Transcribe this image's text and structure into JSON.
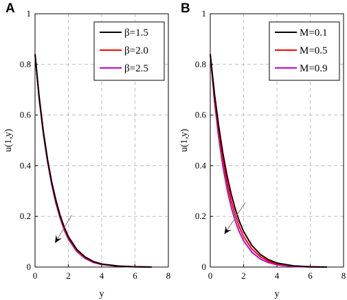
{
  "chart_data": [
    {
      "panel_label": "A",
      "type": "line",
      "xlabel": "y",
      "ylabel": "u(1,y)",
      "xlim": [
        0,
        8
      ],
      "ylim": [
        0,
        1
      ],
      "xticks": [
        "0",
        "2",
        "4",
        "6",
        "8"
      ],
      "yticks": [
        "0",
        "0.2",
        "0.4",
        "0.6",
        "0.8",
        "1"
      ],
      "grid": true,
      "legend_position": "top-right",
      "x": [
        0,
        0.25,
        0.5,
        0.75,
        1,
        1.25,
        1.5,
        1.75,
        2,
        2.5,
        3,
        3.5,
        4,
        5,
        6,
        7
      ],
      "series": [
        {
          "name": "β=1.5",
          "color": "#000000",
          "values": [
            0.84,
            0.67,
            0.535,
            0.425,
            0.335,
            0.265,
            0.205,
            0.158,
            0.12,
            0.07,
            0.04,
            0.022,
            0.012,
            0.004,
            0.001,
            0.0
          ]
        },
        {
          "name": "β=2.0",
          "color": "#ff0000",
          "values": [
            0.84,
            0.665,
            0.53,
            0.42,
            0.33,
            0.258,
            0.2,
            0.152,
            0.115,
            0.066,
            0.037,
            0.02,
            0.011,
            0.003,
            0.001,
            0.0
          ]
        },
        {
          "name": "β=2.5",
          "color": "#cc00cc",
          "values": [
            0.84,
            0.66,
            0.525,
            0.415,
            0.325,
            0.252,
            0.194,
            0.147,
            0.11,
            0.062,
            0.034,
            0.018,
            0.01,
            0.003,
            0.001,
            0.0
          ]
        }
      ],
      "annotation": {
        "type": "arrow",
        "from": [
          2.2,
          0.205
        ],
        "to": [
          1.2,
          0.095
        ]
      }
    },
    {
      "panel_label": "B",
      "type": "line",
      "xlabel": "y",
      "ylabel": "u(1,y)",
      "xlim": [
        0,
        8
      ],
      "ylim": [
        0,
        1
      ],
      "xticks": [
        "0",
        "2",
        "4",
        "6",
        "8"
      ],
      "yticks": [
        "0",
        "0.2",
        "0.4",
        "0.6",
        "0.8",
        "1"
      ],
      "grid": true,
      "legend_position": "top-right",
      "x": [
        0,
        0.25,
        0.5,
        0.75,
        1,
        1.25,
        1.5,
        1.75,
        2,
        2.5,
        3,
        3.5,
        4,
        5,
        6,
        7
      ],
      "series": [
        {
          "name": "M=0.1",
          "color": "#000000",
          "values": [
            0.84,
            0.685,
            0.56,
            0.452,
            0.362,
            0.29,
            0.229,
            0.18,
            0.14,
            0.085,
            0.05,
            0.029,
            0.016,
            0.005,
            0.001,
            0.0
          ]
        },
        {
          "name": "M=0.5",
          "color": "#ff0000",
          "values": [
            0.84,
            0.67,
            0.535,
            0.425,
            0.335,
            0.263,
            0.205,
            0.158,
            0.121,
            0.071,
            0.041,
            0.023,
            0.013,
            0.004,
            0.001,
            0.0
          ]
        },
        {
          "name": "M=0.9",
          "color": "#cc00cc",
          "values": [
            0.84,
            0.655,
            0.515,
            0.4,
            0.31,
            0.238,
            0.182,
            0.138,
            0.104,
            0.058,
            0.032,
            0.017,
            0.009,
            0.002,
            0.0,
            0.0
          ]
        }
      ],
      "annotation": {
        "type": "arrow",
        "from": [
          2.1,
          0.255
        ],
        "to": [
          0.85,
          0.13
        ]
      }
    }
  ]
}
